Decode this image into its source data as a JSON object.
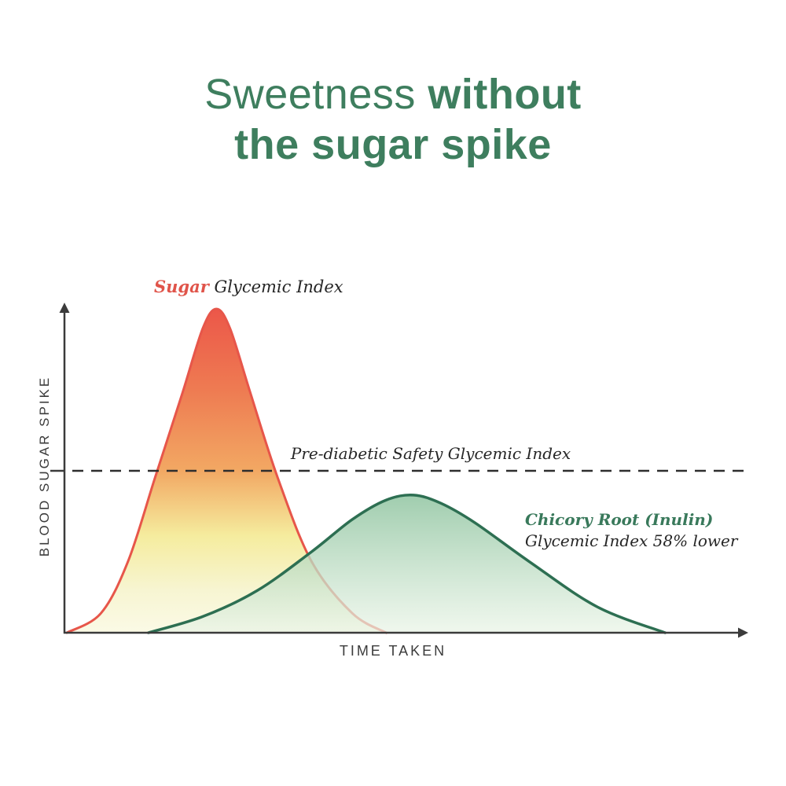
{
  "title": {
    "line1_light": "Sweetness",
    "line1_bold": " without",
    "line2_bold": "the sugar spike"
  },
  "labels": {
    "y_axis": "BLOOD SUGAR SPIKE",
    "x_axis": "TIME TAKEN",
    "sugar_series_name": "Sugar",
    "sugar_series_rest": " Glycemic Index",
    "safety_line": "Pre-diabetic Safety Glycemic Index",
    "chicory_series_name": "Chicory Root (Inulin)",
    "chicory_series_rest": "Glycemic Index 58% lower"
  },
  "colors": {
    "title_green": "#3e7e5e",
    "sugar_red": "#e0544a",
    "sugar_stroke": "#e7564a",
    "chicory_green_text": "#39795b",
    "chicory_stroke": "#2d6f52",
    "axis": "#3b3b3b",
    "dashed_line": "#2e2e2e",
    "dark_text": "#262626"
  },
  "chart_data": {
    "type": "area",
    "title": "Sweetness without the sugar spike",
    "xlabel": "TIME TAKEN",
    "ylabel": "BLOOD SUGAR SPIKE",
    "x_range": [
      0,
      100
    ],
    "y_range": [
      0,
      100
    ],
    "grid": false,
    "annotations": [
      "Sugar Glycemic Index",
      "Pre-diabetic Safety Glycemic Index",
      "Chicory Root (Inulin) Glycemic Index 58% lower"
    ],
    "safety_line_value": 50,
    "series": [
      {
        "name": "Sugar Glycemic Index",
        "peak_time": 22,
        "peak_value": 100,
        "points": [
          [
            0,
            0
          ],
          [
            5,
            6
          ],
          [
            9,
            22
          ],
          [
            13,
            48
          ],
          [
            17,
            74
          ],
          [
            20,
            94
          ],
          [
            22,
            100
          ],
          [
            24,
            94
          ],
          [
            27,
            74
          ],
          [
            31,
            48
          ],
          [
            36,
            22
          ],
          [
            42,
            6
          ],
          [
            47,
            0
          ]
        ]
      },
      {
        "name": "Chicory Root (Inulin)",
        "peak_time": 51,
        "peak_value": 42,
        "points": [
          [
            12,
            0
          ],
          [
            20,
            5
          ],
          [
            28,
            13
          ],
          [
            36,
            25
          ],
          [
            42,
            35
          ],
          [
            47,
            41
          ],
          [
            51,
            42.5
          ],
          [
            55,
            40
          ],
          [
            60,
            34
          ],
          [
            68,
            22
          ],
          [
            78,
            8
          ],
          [
            88,
            0
          ]
        ]
      }
    ]
  }
}
